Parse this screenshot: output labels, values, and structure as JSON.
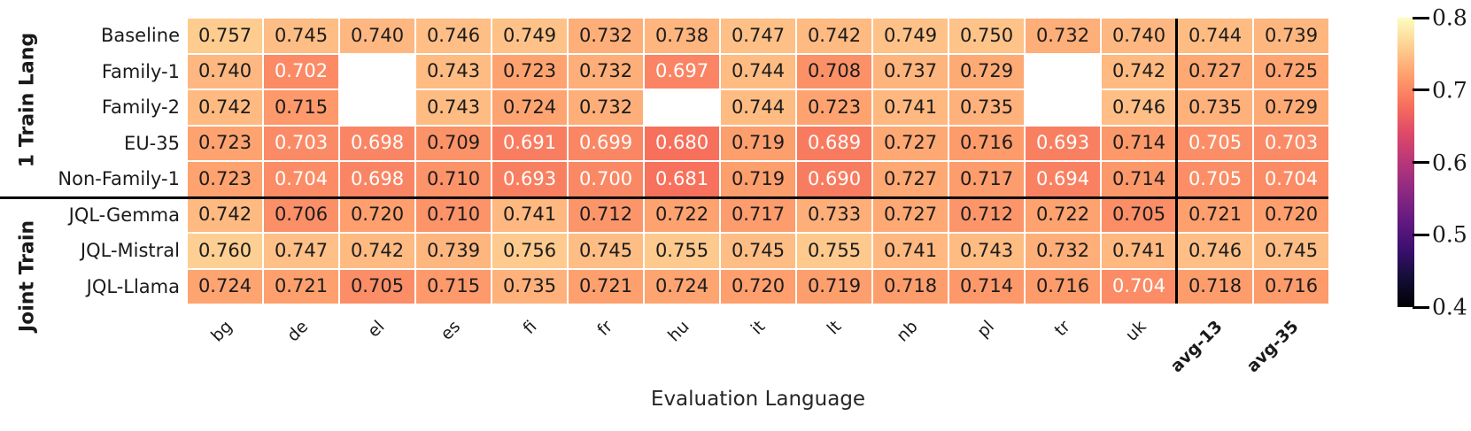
{
  "chart_data": {
    "type": "heatmap",
    "colormap": "magma",
    "vmin": 0.4,
    "vmax": 0.8,
    "xlabel": "Evaluation Language",
    "columns": [
      "bg",
      "de",
      "el",
      "es",
      "fi",
      "fr",
      "hu",
      "it",
      "lt",
      "nb",
      "pl",
      "tr",
      "uk",
      "avg-13",
      "avg-35"
    ],
    "bold_columns": [
      "avg-13",
      "avg-35"
    ],
    "row_groups": [
      {
        "label": "1 Train Lang",
        "rows": [
          "Baseline",
          "Family-1",
          "Family-2",
          "EU-35",
          "Non-Family-1"
        ]
      },
      {
        "label": "Joint Train",
        "rows": [
          "JQL-Gemma",
          "JQL-Mistral",
          "JQL-Llama"
        ]
      }
    ],
    "values": [
      [
        0.757,
        0.745,
        0.74,
        0.746,
        0.749,
        0.732,
        0.738,
        0.747,
        0.742,
        0.749,
        0.75,
        0.732,
        0.74,
        0.744,
        0.739
      ],
      [
        0.74,
        0.702,
        null,
        0.743,
        0.723,
        0.732,
        0.697,
        0.744,
        0.708,
        0.737,
        0.729,
        null,
        0.742,
        0.727,
        0.725
      ],
      [
        0.742,
        0.715,
        null,
        0.743,
        0.724,
        0.732,
        null,
        0.744,
        0.723,
        0.741,
        0.735,
        null,
        0.746,
        0.735,
        0.729
      ],
      [
        0.723,
        0.703,
        0.698,
        0.709,
        0.691,
        0.699,
        0.68,
        0.719,
        0.689,
        0.727,
        0.716,
        0.693,
        0.714,
        0.705,
        0.703
      ],
      [
        0.723,
        0.704,
        0.698,
        0.71,
        0.693,
        0.7,
        0.681,
        0.719,
        0.69,
        0.727,
        0.717,
        0.694,
        0.714,
        0.705,
        0.704
      ],
      [
        0.742,
        0.706,
        0.72,
        0.71,
        0.741,
        0.712,
        0.722,
        0.717,
        0.733,
        0.727,
        0.712,
        0.722,
        0.705,
        0.721,
        0.72
      ],
      [
        0.76,
        0.747,
        0.742,
        0.739,
        0.756,
        0.745,
        0.755,
        0.745,
        0.755,
        0.741,
        0.743,
        0.732,
        0.741,
        0.746,
        0.745
      ],
      [
        0.724,
        0.721,
        0.705,
        0.715,
        0.735,
        0.721,
        0.724,
        0.72,
        0.719,
        0.718,
        0.714,
        0.716,
        0.704,
        0.718,
        0.716
      ]
    ],
    "white_text_cells": [
      [
        1,
        1
      ],
      [
        1,
        6
      ],
      [
        3,
        1
      ],
      [
        3,
        2
      ],
      [
        3,
        4
      ],
      [
        3,
        5
      ],
      [
        3,
        6
      ],
      [
        3,
        8
      ],
      [
        3,
        11
      ],
      [
        3,
        13
      ],
      [
        3,
        14
      ],
      [
        4,
        1
      ],
      [
        4,
        2
      ],
      [
        4,
        4
      ],
      [
        4,
        5
      ],
      [
        4,
        6
      ],
      [
        4,
        8
      ],
      [
        4,
        11
      ],
      [
        4,
        13
      ],
      [
        4,
        14
      ],
      [
        7,
        12
      ]
    ],
    "colorbar_ticks": [
      "0.8",
      "0.7",
      "0.6",
      "0.5",
      "0.4"
    ],
    "legend_position": "right",
    "grid": false
  }
}
